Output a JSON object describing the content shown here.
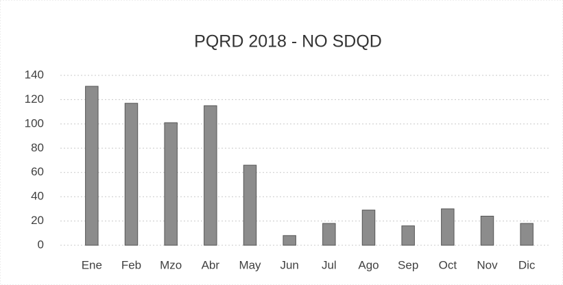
{
  "chart_data": {
    "type": "bar",
    "title": "PQRD 2018 - NO SDQD",
    "categories": [
      "Ene",
      "Feb",
      "Mzo",
      "Abr",
      "May",
      "Jun",
      "Jul",
      "Ago",
      "Sep",
      "Oct",
      "Nov",
      "Dic"
    ],
    "values": [
      131,
      117,
      101,
      115,
      66,
      8,
      18,
      29,
      16,
      30,
      24,
      18
    ],
    "color": "#8c8c8c",
    "ylim": [
      0,
      140
    ],
    "yticks": [
      0,
      20,
      40,
      60,
      80,
      100,
      120,
      140
    ],
    "grid": true
  }
}
